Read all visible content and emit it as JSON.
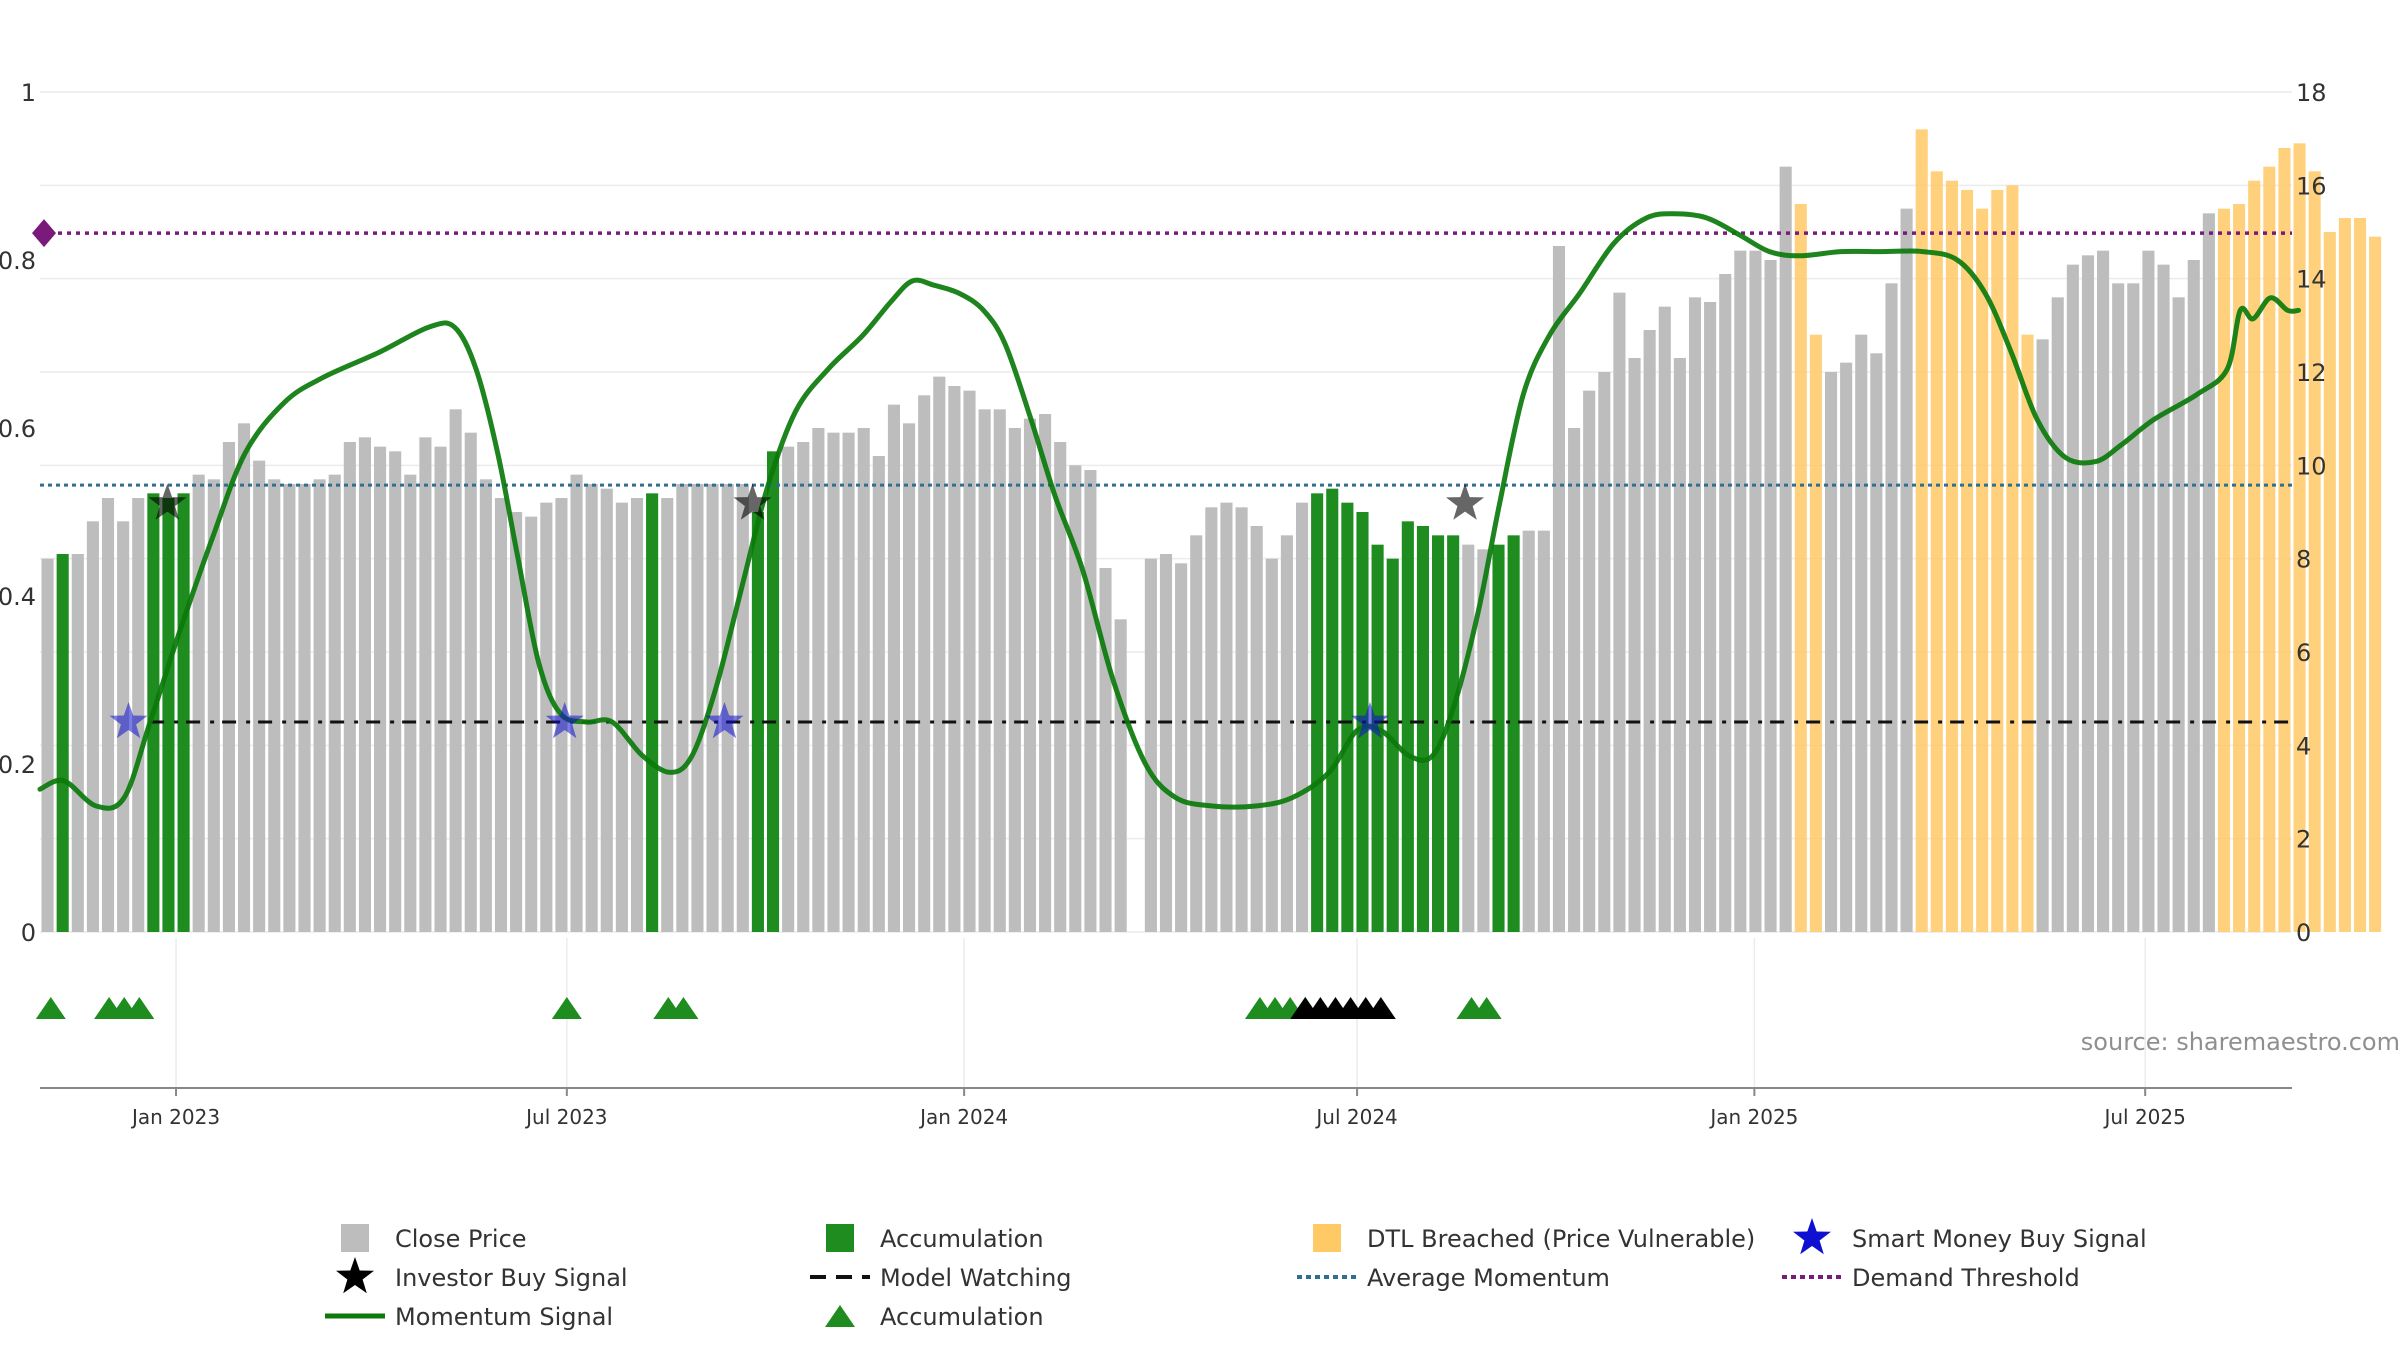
{
  "chart_data": {
    "type": "bar",
    "title": "",
    "xlabel": "",
    "ylabel_left": "",
    "ylabel_right": "",
    "source": "source: sharemaestro.com",
    "x_range": [
      "2022-10-30",
      "2025-09-07"
    ],
    "left_axis": {
      "range": [
        0,
        1
      ],
      "ticks": [
        "0",
        "0.2",
        "0.4",
        "0.6",
        "0.8",
        "1"
      ]
    },
    "right_axis": {
      "range": [
        0,
        18
      ],
      "ticks": [
        "0",
        "2",
        "4",
        "6",
        "8",
        "10",
        "12",
        "14",
        "16",
        "18"
      ]
    },
    "x_ticks": [
      {
        "date": "2023-01-01",
        "label": "Jan 2023"
      },
      {
        "date": "2023-07-01",
        "label": "Jul 2023"
      },
      {
        "date": "2024-01-01",
        "label": "Jan 2024"
      },
      {
        "date": "2024-07-01",
        "label": "Jul 2024"
      },
      {
        "date": "2025-01-01",
        "label": "Jan 2025"
      },
      {
        "date": "2025-07-01",
        "label": "Jul 2025"
      }
    ],
    "grid": true,
    "legend_position": "bottom",
    "week_start": "2022-10-30",
    "weekly_close_price": [
      8.0,
      8.1,
      8.1,
      8.8,
      9.3,
      8.8,
      9.3,
      9.4,
      9.3,
      9.4,
      9.8,
      9.7,
      10.5,
      10.9,
      10.1,
      9.7,
      9.6,
      9.6,
      9.7,
      9.8,
      10.5,
      10.6,
      10.4,
      10.3,
      9.8,
      10.6,
      10.4,
      11.2,
      10.7,
      9.7,
      9.3,
      9.0,
      8.9,
      9.2,
      9.3,
      9.8,
      9.6,
      9.5,
      9.2,
      9.3,
      9.4,
      9.3,
      9.6,
      9.6,
      9.6,
      9.6,
      9.6,
      9.0,
      10.3,
      10.4,
      10.5,
      10.8,
      10.7,
      10.7,
      10.8,
      10.2,
      11.3,
      10.9,
      11.5,
      11.9,
      11.7,
      11.6,
      11.2,
      11.2,
      10.8,
      11.0,
      11.1,
      10.5,
      10.0,
      9.9,
      7.8,
      6.7,
      null,
      8.0,
      8.1,
      7.9,
      8.5,
      9.1,
      9.2,
      9.1,
      8.7,
      8.0,
      8.5,
      9.2,
      9.4,
      9.5,
      9.2,
      9.0,
      8.3,
      8.0,
      8.8,
      8.7,
      8.5,
      8.5,
      8.3,
      8.2,
      8.3,
      8.5,
      8.6,
      8.6,
      14.7,
      10.8,
      11.6,
      12.0,
      13.7,
      12.3,
      12.9,
      13.4,
      12.3,
      13.6,
      13.5,
      14.1,
      14.6,
      14.6,
      14.4,
      16.4,
      15.6,
      12.8,
      12.0,
      12.2,
      12.8,
      12.4,
      13.9,
      15.5,
      17.2,
      16.3,
      16.1,
      15.9,
      15.5,
      15.9,
      16.0,
      12.8,
      12.7,
      13.6,
      14.3,
      14.5,
      14.6,
      13.9,
      13.9,
      14.6,
      14.3,
      13.6,
      14.4,
      15.4,
      15.5,
      15.6,
      16.1,
      16.4,
      16.8,
      16.9,
      16.3,
      15.0,
      15.3,
      15.3,
      14.9
    ],
    "accumulation_weeks": [
      1,
      7,
      8,
      9,
      40,
      47,
      48,
      84,
      85,
      86,
      87,
      88,
      89,
      90,
      91,
      92,
      93,
      96,
      97
    ],
    "dtl_breached_weeks": [
      116,
      117,
      124,
      125,
      126,
      127,
      128,
      129,
      130,
      131,
      144,
      145,
      146,
      147,
      148,
      149,
      150,
      151,
      152,
      153,
      154,
      155
    ],
    "momentum_signal": [
      [
        "2022-10-30",
        0.17
      ],
      [
        "2022-11-10",
        0.18
      ],
      [
        "2022-11-25",
        0.15
      ],
      [
        "2022-12-08",
        0.16
      ],
      [
        "2022-12-20",
        0.25
      ],
      [
        "2023-01-03",
        0.36
      ],
      [
        "2023-01-18",
        0.47
      ],
      [
        "2023-02-02",
        0.57
      ],
      [
        "2023-02-20",
        0.63
      ],
      [
        "2023-03-10",
        0.66
      ],
      [
        "2023-04-05",
        0.69
      ],
      [
        "2023-04-28",
        0.72
      ],
      [
        "2023-05-10",
        0.72
      ],
      [
        "2023-05-20",
        0.67
      ],
      [
        "2023-05-30",
        0.57
      ],
      [
        "2023-06-08",
        0.45
      ],
      [
        "2023-06-18",
        0.32
      ],
      [
        "2023-06-28",
        0.26
      ],
      [
        "2023-07-10",
        0.25
      ],
      [
        "2023-07-22",
        0.25
      ],
      [
        "2023-08-05",
        0.21
      ],
      [
        "2023-08-18",
        0.19
      ],
      [
        "2023-08-28",
        0.21
      ],
      [
        "2023-09-08",
        0.29
      ],
      [
        "2023-09-20",
        0.41
      ],
      [
        "2023-10-02",
        0.53
      ],
      [
        "2023-10-15",
        0.62
      ],
      [
        "2023-10-30",
        0.67
      ],
      [
        "2023-11-15",
        0.71
      ],
      [
        "2023-11-28",
        0.75
      ],
      [
        "2023-12-08",
        0.775
      ],
      [
        "2023-12-18",
        0.77
      ],
      [
        "2023-12-30",
        0.76
      ],
      [
        "2024-01-10",
        0.74
      ],
      [
        "2024-01-20",
        0.7
      ],
      [
        "2024-02-01",
        0.61
      ],
      [
        "2024-02-12",
        0.52
      ],
      [
        "2024-02-25",
        0.43
      ],
      [
        "2024-03-10",
        0.3
      ],
      [
        "2024-03-25",
        0.2
      ],
      [
        "2024-04-08",
        0.16
      ],
      [
        "2024-04-25",
        0.15
      ],
      [
        "2024-05-15",
        0.15
      ],
      [
        "2024-06-01",
        0.16
      ],
      [
        "2024-06-18",
        0.19
      ],
      [
        "2024-07-01",
        0.24
      ],
      [
        "2024-07-12",
        0.24
      ],
      [
        "2024-07-25",
        0.21
      ],
      [
        "2024-08-05",
        0.21
      ],
      [
        "2024-08-15",
        0.27
      ],
      [
        "2024-08-26",
        0.38
      ],
      [
        "2024-09-05",
        0.51
      ],
      [
        "2024-09-16",
        0.64
      ],
      [
        "2024-09-28",
        0.71
      ],
      [
        "2024-10-12",
        0.76
      ],
      [
        "2024-10-28",
        0.82
      ],
      [
        "2024-11-12",
        0.85
      ],
      [
        "2024-11-25",
        0.855
      ],
      [
        "2024-12-10",
        0.85
      ],
      [
        "2024-12-25",
        0.83
      ],
      [
        "2025-01-08",
        0.81
      ],
      [
        "2025-01-22",
        0.805
      ],
      [
        "2025-02-10",
        0.81
      ],
      [
        "2025-03-01",
        0.81
      ],
      [
        "2025-03-20",
        0.81
      ],
      [
        "2025-04-05",
        0.8
      ],
      [
        "2025-04-18",
        0.76
      ],
      [
        "2025-04-30",
        0.69
      ],
      [
        "2025-05-12",
        0.61
      ],
      [
        "2025-05-25",
        0.565
      ],
      [
        "2025-06-08",
        0.56
      ],
      [
        "2025-06-20",
        0.58
      ],
      [
        "2025-07-05",
        0.61
      ],
      [
        "2025-07-25",
        0.64
      ],
      [
        "2025-08-08",
        0.67
      ],
      [
        "2025-08-14",
        0.74
      ],
      [
        "2025-08-20",
        0.73
      ],
      [
        "2025-08-28",
        0.755
      ],
      [
        "2025-09-05",
        0.74
      ],
      [
        "2025-09-10",
        0.74
      ]
    ],
    "average_momentum": 0.532,
    "demand_threshold": 0.832,
    "model_watching_level": 0.25,
    "model_watching_start": "2022-12-20",
    "smart_money_buy_signals": [
      "2022-12-10",
      "2023-06-30",
      "2023-09-12",
      "2024-07-07"
    ],
    "investor_buy_signals": [
      [
        "2022-12-28",
        0.51
      ],
      [
        "2023-09-25",
        0.51
      ],
      [
        "2024-08-20",
        0.51
      ]
    ],
    "accumulation_markers": [
      "2022-11-04",
      "2022-12-01",
      "2022-12-08",
      "2022-12-15",
      "2023-07-01",
      "2023-08-17",
      "2023-08-24",
      "2024-05-17",
      "2024-05-24",
      "2024-05-31",
      "2024-06-07",
      "2024-08-23",
      "2024-08-30"
    ],
    "investor_markers": [
      "2024-06-07",
      "2024-06-14",
      "2024-06-21",
      "2024-06-28",
      "2024-07-05",
      "2024-07-12"
    ],
    "colors": {
      "close_price": "#bdbdbd",
      "accumulation": "#1e8c1e",
      "dtl_breached": "#ffc966",
      "momentum": "#0b7a0b",
      "average_momentum": "#2f6f8f",
      "demand_threshold": "#7a1a7a",
      "smart_money": "#1010d0",
      "investor": "#000000",
      "model_watching": "#111111"
    },
    "legend": [
      {
        "label": "Close Price",
        "icon": "square-grey"
      },
      {
        "label": "Accumulation",
        "icon": "square-green"
      },
      {
        "label": "DTL Breached (Price Vulnerable)",
        "icon": "square-orange"
      },
      {
        "label": "Smart Money Buy Signal",
        "icon": "star-blue"
      },
      {
        "label": "Investor Buy Signal",
        "icon": "star-black"
      },
      {
        "label": "Model Watching",
        "icon": "dash-black"
      },
      {
        "label": "Average Momentum",
        "icon": "dotted-blue"
      },
      {
        "label": "Demand Threshold",
        "icon": "dotted-purple"
      },
      {
        "label": "Momentum Signal",
        "icon": "line-green"
      },
      {
        "label": "Accumulation",
        "icon": "triangle-green"
      }
    ]
  }
}
